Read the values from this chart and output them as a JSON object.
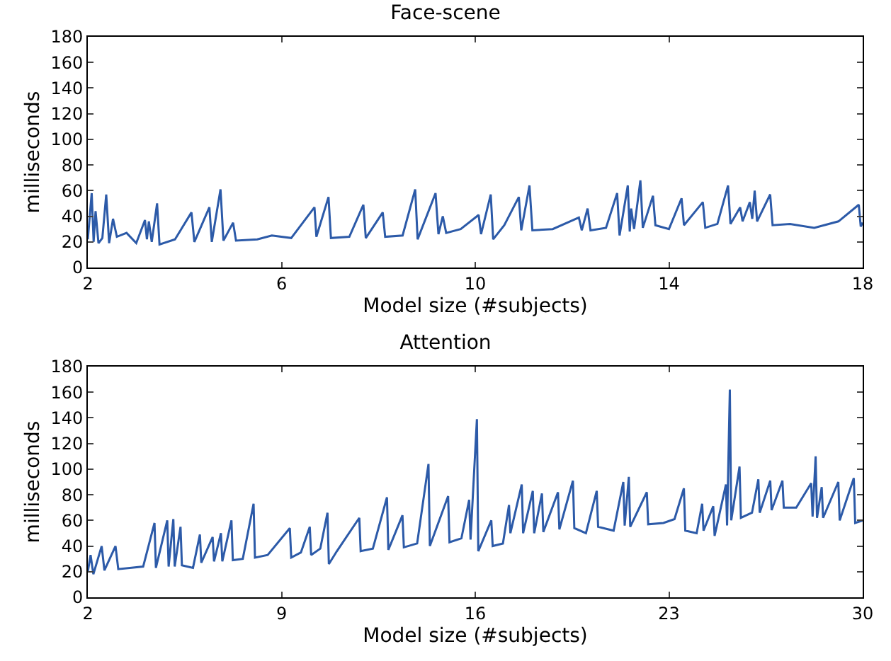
{
  "chart_data": [
    {
      "type": "line",
      "title": "Face-scene",
      "xlabel": "Model size (#subjects)",
      "ylabel": "milliseconds",
      "xlim": [
        2,
        18
      ],
      "xticks": [
        2,
        6,
        10,
        14,
        18
      ],
      "ylim": [
        0,
        180
      ],
      "yticks": [
        0,
        20,
        40,
        60,
        80,
        100,
        120,
        140,
        160,
        180
      ],
      "series": [
        {
          "color": "#2c5aa8",
          "x": [
            2.0,
            2.08,
            2.12,
            2.16,
            2.22,
            2.3,
            2.38,
            2.44,
            2.52,
            2.6,
            2.8,
            3.0,
            3.18,
            3.22,
            3.26,
            3.32,
            3.43,
            3.48,
            3.8,
            4.14,
            4.2,
            4.51,
            4.56,
            4.74,
            4.8,
            5.0,
            5.06,
            5.5,
            5.8,
            6.2,
            6.68,
            6.72,
            6.97,
            7.02,
            7.4,
            7.69,
            7.74,
            8.09,
            8.14,
            8.5,
            8.76,
            8.81,
            9.18,
            9.24,
            9.33,
            9.4,
            9.7,
            10.07,
            10.12,
            10.32,
            10.37,
            10.6,
            10.9,
            10.95,
            11.12,
            11.18,
            11.6,
            12.14,
            12.2,
            12.32,
            12.38,
            12.7,
            12.93,
            12.98,
            13.15,
            13.19,
            13.22,
            13.28,
            13.41,
            13.46,
            13.67,
            13.72,
            14.0,
            14.26,
            14.31,
            14.7,
            14.75,
            15.0,
            15.22,
            15.27,
            15.47,
            15.52,
            15.67,
            15.72,
            15.77,
            15.82,
            16.09,
            16.14,
            16.5,
            17.0,
            17.5,
            17.92,
            17.96,
            18.0
          ],
          "values": [
            22,
            58,
            20,
            44,
            19,
            23,
            57,
            19,
            38,
            24,
            27,
            19,
            37,
            22,
            36,
            20,
            50,
            18,
            22,
            43,
            20,
            47,
            20,
            61,
            21,
            35,
            21,
            22,
            25,
            23,
            47,
            24,
            55,
            23,
            24,
            49,
            23,
            43,
            24,
            25,
            61,
            22,
            58,
            26,
            40,
            27,
            30,
            41,
            26,
            57,
            22,
            33,
            55,
            29,
            64,
            29,
            30,
            39,
            29,
            46,
            29,
            31,
            58,
            25,
            64,
            28,
            46,
            30,
            68,
            31,
            56,
            33,
            30,
            54,
            33,
            51,
            31,
            34,
            64,
            34,
            47,
            36,
            51,
            38,
            60,
            36,
            57,
            33,
            34,
            31,
            36,
            49,
            32,
            35
          ]
        }
      ]
    },
    {
      "type": "line",
      "title": "Attention",
      "xlabel": "Model size (#subjects)",
      "ylabel": "milliseconds",
      "xlim": [
        2,
        30
      ],
      "xticks": [
        2,
        9,
        16,
        23,
        30
      ],
      "ylim": [
        0,
        180
      ],
      "yticks": [
        0,
        20,
        40,
        60,
        80,
        100,
        120,
        140,
        160,
        180
      ],
      "series": [
        {
          "color": "#2c5aa8",
          "x": [
            2.0,
            2.1,
            2.2,
            2.5,
            2.6,
            3.0,
            3.1,
            4.0,
            4.41,
            4.46,
            4.87,
            4.92,
            5.09,
            5.14,
            5.35,
            5.4,
            5.8,
            6.05,
            6.1,
            6.51,
            6.56,
            6.81,
            6.86,
            7.19,
            7.24,
            7.6,
            7.99,
            8.04,
            8.5,
            9.3,
            9.35,
            9.7,
            10.02,
            10.07,
            10.4,
            10.66,
            10.71,
            11.0,
            11.81,
            11.86,
            12.3,
            12.81,
            12.86,
            13.37,
            13.42,
            13.9,
            14.31,
            14.36,
            15.02,
            15.07,
            15.5,
            15.78,
            15.83,
            16.06,
            16.11,
            16.58,
            16.63,
            17.0,
            17.22,
            17.27,
            17.68,
            17.73,
            18.08,
            18.13,
            18.41,
            18.46,
            18.99,
            19.04,
            19.53,
            19.58,
            20.0,
            20.39,
            20.44,
            21.0,
            21.35,
            21.4,
            21.55,
            21.6,
            22.2,
            22.25,
            22.8,
            23.2,
            23.54,
            23.59,
            24.0,
            24.2,
            24.25,
            24.6,
            24.65,
            25.06,
            25.1,
            25.2,
            25.25,
            25.55,
            25.6,
            26.0,
            26.23,
            26.28,
            26.66,
            26.71,
            27.1,
            27.15,
            27.6,
            28.14,
            28.19,
            28.3,
            28.35,
            28.52,
            28.57,
            29.12,
            29.17,
            29.68,
            29.73,
            30.0
          ],
          "values": [
            20,
            33,
            18,
            40,
            21,
            40,
            22,
            24,
            58,
            23,
            60,
            24,
            61,
            24,
            55,
            25,
            23,
            49,
            27,
            47,
            28,
            50,
            28,
            60,
            29,
            30,
            73,
            31,
            33,
            54,
            31,
            35,
            55,
            33,
            38,
            66,
            26,
            36,
            62,
            36,
            38,
            78,
            37,
            64,
            39,
            42,
            104,
            40,
            79,
            43,
            46,
            76,
            45,
            139,
            36,
            60,
            40,
            42,
            72,
            50,
            88,
            50,
            83,
            50,
            81,
            51,
            82,
            53,
            91,
            54,
            50,
            83,
            55,
            52,
            90,
            56,
            94,
            55,
            82,
            57,
            58,
            61,
            85,
            52,
            50,
            73,
            52,
            71,
            48,
            88,
            56,
            162,
            60,
            102,
            62,
            66,
            92,
            66,
            91,
            68,
            91,
            70,
            70,
            89,
            63,
            110,
            62,
            86,
            62,
            90,
            60,
            93,
            58,
            60
          ]
        }
      ]
    }
  ]
}
